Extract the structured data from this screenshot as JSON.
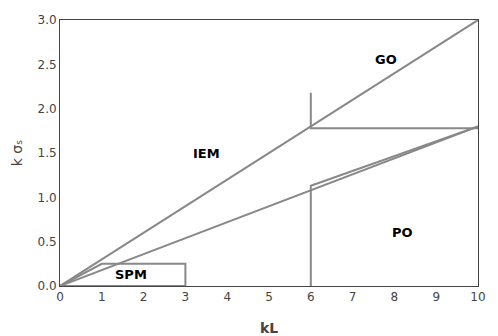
{
  "chart_data": {
    "type": "line",
    "xlabel": "kL",
    "ylabel": "k σₛ",
    "xlim": [
      0,
      10
    ],
    "ylim": [
      0,
      3
    ],
    "xticks": [
      0,
      1,
      2,
      3,
      4,
      5,
      6,
      7,
      8,
      9,
      10
    ],
    "yticks": [
      {
        "value": 0,
        "label": "0.0"
      },
      {
        "value": 0.5,
        "label": "0.5"
      },
      {
        "value": 1,
        "label": "1.0"
      },
      {
        "value": 1.5,
        "label": "1.5"
      },
      {
        "value": 2,
        "label": "2.0"
      },
      {
        "value": 2.5,
        "label": "2.5"
      },
      {
        "value": 3,
        "label": "3.0"
      }
    ],
    "grid": false,
    "series": [
      {
        "x": [
          0,
          3,
          3,
          1.0,
          0
        ],
        "values": [
          0,
          0,
          0.25,
          0.25,
          0
        ],
        "color": "#888888"
      },
      {
        "x": [
          0,
          10
        ],
        "values": [
          0,
          3.0
        ],
        "color": "#888888"
      },
      {
        "x": [
          0,
          10
        ],
        "values": [
          0,
          1.8
        ],
        "color": "#888888"
      },
      {
        "x": [
          6,
          6,
          10
        ],
        "values": [
          2.18,
          1.78,
          1.78
        ],
        "color": "#888888"
      },
      {
        "x": [
          6,
          6,
          10
        ],
        "values": [
          0,
          1.13,
          1.8
        ],
        "color": "#888888"
      }
    ],
    "annotations": [
      {
        "text": "SPM",
        "x": 1.7,
        "y": 0.13
      },
      {
        "text": "IEM",
        "x": 3.5,
        "y": 1.5
      },
      {
        "text": "GO",
        "x": 7.8,
        "y": 2.55
      },
      {
        "text": "PO",
        "x": 8.2,
        "y": 0.6
      }
    ]
  }
}
